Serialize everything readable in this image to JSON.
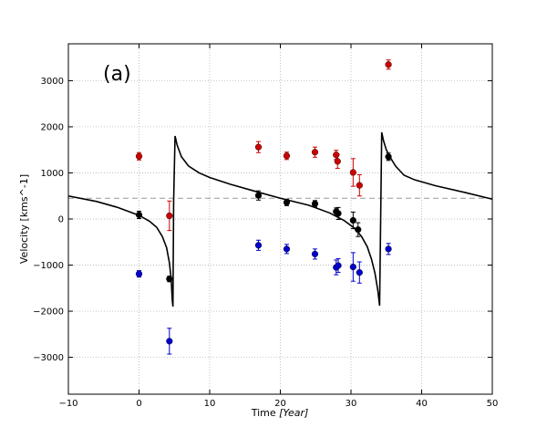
{
  "chart_data": {
    "type": "scatter",
    "title": "",
    "panel_label": "(a)",
    "xlabel": "Time [Year]",
    "xlabel_main": "Time ",
    "xlabel_unit": "[Year]",
    "ylabel": "Velocity [kms^-1]",
    "xlim": [
      -10,
      50
    ],
    "ylim": [
      -3800,
      3800
    ],
    "xticks": [
      -10,
      0,
      10,
      20,
      30,
      40,
      50
    ],
    "xtick_labels": [
      "−10",
      "0",
      "10",
      "20",
      "30",
      "40",
      "50"
    ],
    "yticks": [
      -3000,
      -2000,
      -1000,
      0,
      1000,
      2000,
      3000
    ],
    "ytick_labels": [
      "−3000",
      "−2000",
      "−1000",
      "0",
      "1000",
      "2000",
      "3000"
    ],
    "grid": true,
    "systemic_velocity": 450,
    "colors": {
      "red": "#cc0000",
      "black": "#000000",
      "blue": "#0000cc",
      "curve": "#000000",
      "systemic": "#999999"
    },
    "series": [
      {
        "name": "red",
        "points": [
          {
            "x": 0,
            "y": 1360,
            "err": 80
          },
          {
            "x": 4.3,
            "y": 70,
            "err": 320
          },
          {
            "x": 16.9,
            "y": 1560,
            "err": 120
          },
          {
            "x": 20.9,
            "y": 1370,
            "err": 80
          },
          {
            "x": 24.9,
            "y": 1450,
            "err": 110
          },
          {
            "x": 27.9,
            "y": 1390,
            "err": 100
          },
          {
            "x": 28.1,
            "y": 1250,
            "err": 150
          },
          {
            "x": 30.3,
            "y": 1010,
            "err": 300
          },
          {
            "x": 31.2,
            "y": 730,
            "err": 230
          },
          {
            "x": 35.3,
            "y": 3350,
            "err": 100
          }
        ]
      },
      {
        "name": "black",
        "points": [
          {
            "x": 0,
            "y": 90,
            "err": 80
          },
          {
            "x": 4.3,
            "y": -1300,
            "err": 60
          },
          {
            "x": 16.9,
            "y": 510,
            "err": 100
          },
          {
            "x": 20.9,
            "y": 360,
            "err": 70
          },
          {
            "x": 24.9,
            "y": 330,
            "err": 70
          },
          {
            "x": 27.9,
            "y": 160,
            "err": 80
          },
          {
            "x": 28.2,
            "y": 120,
            "err": 130
          },
          {
            "x": 30.3,
            "y": -30,
            "err": 180
          },
          {
            "x": 31.0,
            "y": -230,
            "err": 150
          },
          {
            "x": 35.3,
            "y": 1350,
            "err": 80
          }
        ]
      },
      {
        "name": "blue",
        "points": [
          {
            "x": 0,
            "y": -1190,
            "err": 70
          },
          {
            "x": 4.3,
            "y": -2650,
            "err": 280
          },
          {
            "x": 16.9,
            "y": -570,
            "err": 110
          },
          {
            "x": 20.9,
            "y": -650,
            "err": 100
          },
          {
            "x": 24.9,
            "y": -760,
            "err": 110
          },
          {
            "x": 27.9,
            "y": -1050,
            "err": 160
          },
          {
            "x": 28.2,
            "y": -1010,
            "err": 150
          },
          {
            "x": 30.3,
            "y": -1040,
            "err": 310
          },
          {
            "x": 31.2,
            "y": -1160,
            "err": 230
          },
          {
            "x": 35.3,
            "y": -650,
            "err": 120
          }
        ]
      }
    ],
    "model_curve": {
      "name": "orbital model",
      "x": [
        -10,
        -6,
        -3,
        0,
        1.5,
        2.5,
        3.3,
        3.9,
        4.3,
        4.55,
        4.7,
        4.8,
        4.9,
        5.1,
        5.4,
        6,
        7,
        8.5,
        10,
        13,
        16,
        20,
        24,
        27,
        29,
        30.5,
        31.5,
        32.3,
        32.9,
        33.4,
        33.8,
        34.05,
        34.2,
        34.35,
        34.6,
        35,
        35.5,
        36.3,
        37.5,
        39,
        42,
        46,
        50
      ],
      "y": [
        500,
        380,
        250,
        80,
        -50,
        -180,
        -380,
        -620,
        -950,
        -1300,
        -1750,
        -1900,
        400,
        1800,
        1600,
        1350,
        1150,
        1000,
        900,
        750,
        620,
        450,
        300,
        130,
        -30,
        -200,
        -380,
        -600,
        -870,
        -1180,
        -1550,
        -1880,
        0,
        1880,
        1700,
        1500,
        1350,
        1150,
        950,
        850,
        720,
        580,
        430
      ]
    }
  }
}
